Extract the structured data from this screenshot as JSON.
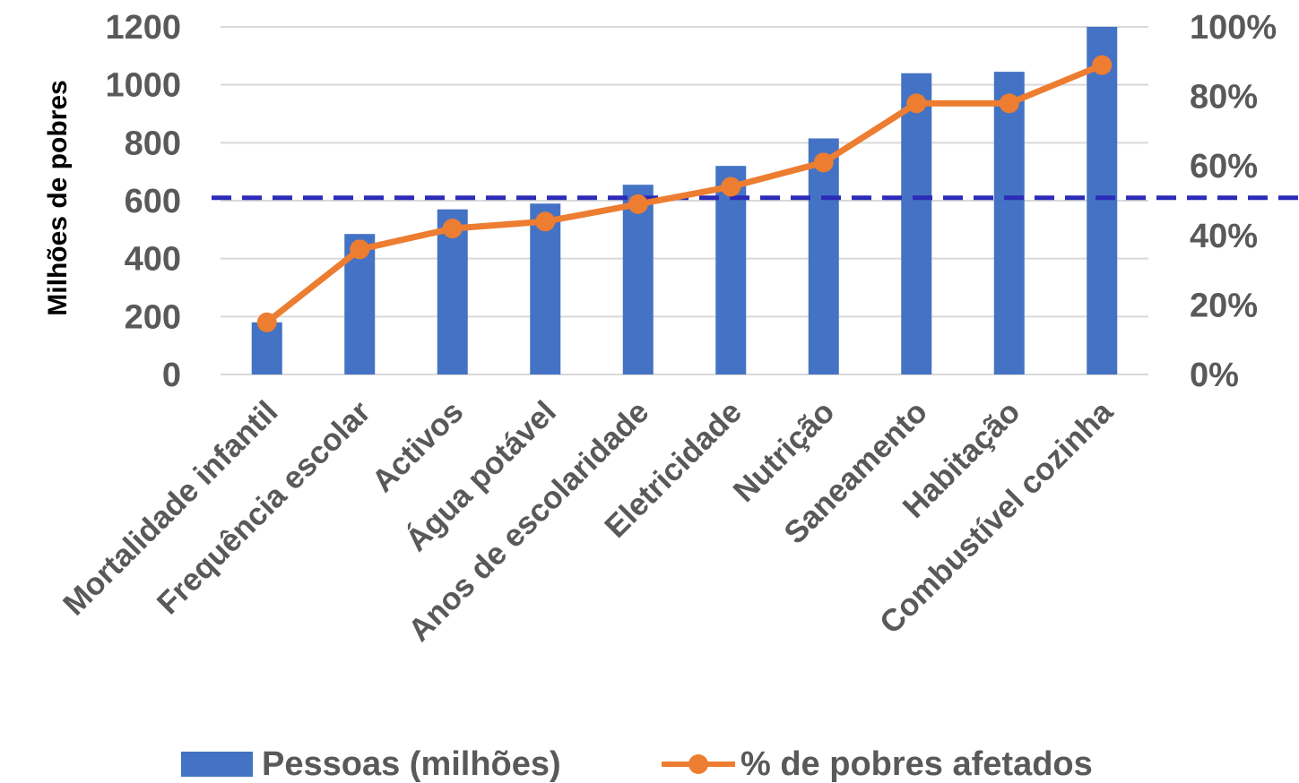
{
  "chart_data": {
    "type": "bar",
    "categories": [
      "Mortalidade infantil",
      "Frequência escolar",
      "Activos",
      "Água potável",
      "Anos de escolaridade",
      "Eletricidade",
      "Nutrição",
      "Saneamento",
      "Habitação",
      "Combustível cozinha"
    ],
    "series": [
      {
        "name": "Pessoas (milhões)",
        "type": "bar",
        "axis": "left",
        "color": "#4472C4",
        "values": [
          180,
          485,
          570,
          590,
          655,
          720,
          815,
          1040,
          1045,
          1200
        ]
      },
      {
        "name": "% de pobres afetados",
        "type": "line",
        "axis": "right",
        "color": "#ED7D31",
        "values": [
          15,
          36,
          42,
          44,
          49,
          54,
          61,
          78,
          78,
          89
        ]
      }
    ],
    "reference_line": {
      "axis": "left",
      "value": 610,
      "style": "dashed",
      "color": "#2B2BB8"
    },
    "ylabel": "Milhões de pobres",
    "ylim": [
      0,
      1200
    ],
    "yticks": [
      "0",
      "200",
      "400",
      "600",
      "800",
      "1000",
      "1200"
    ],
    "y2lim": [
      0,
      100
    ],
    "y2ticks": [
      "0%",
      "20%",
      "40%",
      "60%",
      "80%",
      "100%"
    ],
    "grid": true,
    "legend_position": "bottom"
  }
}
